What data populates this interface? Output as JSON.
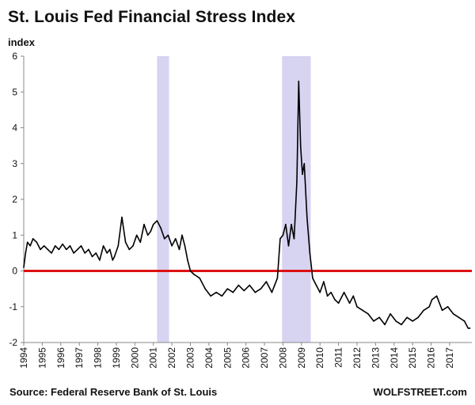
{
  "title": "St. Louis Fed Financial Stress Index",
  "source": "Source: Federal Reserve Bank of St. Louis",
  "credit": "WOLFSTREET.com",
  "colors": {
    "line": "#000000",
    "zero_line": "#dd1111",
    "recession": "#c9c6ee"
  },
  "chart_data": {
    "type": "line",
    "title": "St. Louis Fed Financial Stress Index",
    "ylabel": "index",
    "xlabel": "",
    "ylim": [
      -2,
      6
    ],
    "xlim": [
      1994.0,
      2018.2
    ],
    "yticks": [
      "6",
      "5",
      "4",
      "3",
      "2",
      "1",
      "0",
      "-1",
      "-2"
    ],
    "xticks": [
      "1994",
      "1995",
      "1996",
      "1997",
      "1998",
      "1999",
      "2000",
      "2001",
      "2002",
      "2003",
      "2004",
      "2005",
      "2006",
      "2007",
      "2008",
      "2009",
      "2010",
      "2011",
      "2012",
      "2013",
      "2014",
      "2015",
      "2016",
      "2017"
    ],
    "grid": false,
    "reference_line": {
      "y": 0
    },
    "shaded_periods": [
      [
        2001.2,
        2001.85
      ],
      [
        2007.95,
        2009.5
      ]
    ],
    "series": [
      {
        "x": [
          1994.0,
          1994.1,
          1994.2,
          1994.35,
          1994.5,
          1994.7,
          1994.9,
          1995.1,
          1995.3,
          1995.5,
          1995.7,
          1995.9,
          1996.1,
          1996.3,
          1996.5,
          1996.7,
          1996.9,
          1997.1,
          1997.3,
          1997.5,
          1997.7,
          1997.9,
          1998.1,
          1998.3,
          1998.5,
          1998.65,
          1998.8,
          1998.9,
          1999.1,
          1999.3,
          1999.5,
          1999.7,
          1999.9,
          2000.1,
          2000.3,
          2000.5,
          2000.7,
          2000.85,
          2001.0,
          2001.2,
          2001.4,
          2001.6,
          2001.8,
          2002.0,
          2002.2,
          2002.4,
          2002.55,
          2002.7,
          2002.85,
          2003.0,
          2003.2,
          2003.5,
          2003.8,
          2004.1,
          2004.4,
          2004.7,
          2005.0,
          2005.3,
          2005.6,
          2005.9,
          2006.2,
          2006.5,
          2006.8,
          2007.1,
          2007.4,
          2007.55,
          2007.7,
          2007.85,
          2008.0,
          2008.15,
          2008.3,
          2008.45,
          2008.6,
          2008.75,
          2008.85,
          2008.95,
          2009.05,
          2009.15,
          2009.3,
          2009.45,
          2009.6,
          2009.8,
          2010.0,
          2010.2,
          2010.4,
          2010.6,
          2010.8,
          2011.0,
          2011.3,
          2011.6,
          2011.8,
          2012.0,
          2012.3,
          2012.6,
          2012.9,
          2013.2,
          2013.5,
          2013.8,
          2014.1,
          2014.4,
          2014.7,
          2015.0,
          2015.3,
          2015.6,
          2015.9,
          2016.05,
          2016.3,
          2016.6,
          2016.9,
          2017.2,
          2017.5,
          2017.8,
          2018.0,
          2018.1
        ],
        "values": [
          0.1,
          0.5,
          0.8,
          0.7,
          0.9,
          0.8,
          0.6,
          0.7,
          0.6,
          0.5,
          0.7,
          0.6,
          0.75,
          0.6,
          0.7,
          0.5,
          0.6,
          0.7,
          0.5,
          0.6,
          0.4,
          0.5,
          0.3,
          0.7,
          0.5,
          0.6,
          0.3,
          0.4,
          0.7,
          1.5,
          0.8,
          0.6,
          0.7,
          1.0,
          0.8,
          1.3,
          1.0,
          1.1,
          1.3,
          1.4,
          1.2,
          0.9,
          1.0,
          0.7,
          0.9,
          0.6,
          1.0,
          0.7,
          0.3,
          0.0,
          -0.1,
          -0.2,
          -0.5,
          -0.7,
          -0.6,
          -0.7,
          -0.5,
          -0.6,
          -0.4,
          -0.55,
          -0.4,
          -0.6,
          -0.5,
          -0.3,
          -0.6,
          -0.4,
          -0.2,
          0.9,
          1.0,
          1.3,
          0.7,
          1.3,
          0.9,
          2.5,
          5.3,
          3.5,
          2.7,
          3.0,
          1.5,
          0.5,
          -0.2,
          -0.4,
          -0.6,
          -0.3,
          -0.7,
          -0.6,
          -0.8,
          -0.9,
          -0.6,
          -0.9,
          -0.7,
          -1.0,
          -1.1,
          -1.2,
          -1.4,
          -1.3,
          -1.5,
          -1.2,
          -1.4,
          -1.5,
          -1.3,
          -1.4,
          -1.3,
          -1.1,
          -1.0,
          -0.8,
          -0.7,
          -1.1,
          -1.0,
          -1.2,
          -1.3,
          -1.4,
          -1.6,
          -1.6
        ]
      }
    ]
  }
}
